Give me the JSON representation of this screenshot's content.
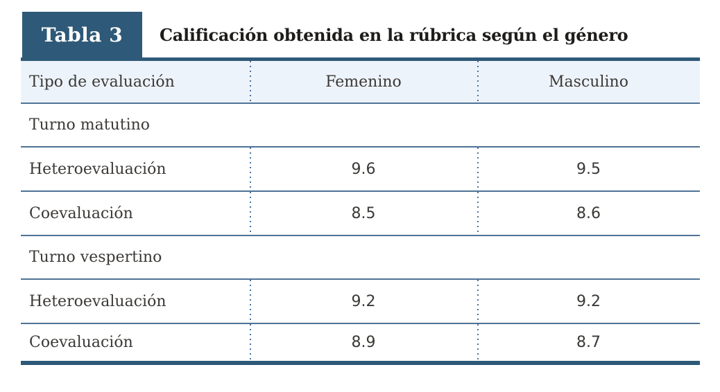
{
  "badge": {
    "label": "Tabla 3"
  },
  "title": "Calificación obtenida en la rúbrica según el género",
  "table": {
    "header": [
      "Tipo de evaluación",
      "Femenino",
      "Masculino"
    ],
    "sections": [
      {
        "title": "Turno matutino",
        "rows": [
          {
            "label": "Heteroevaluación",
            "values": [
              "9.6",
              "9.5"
            ]
          },
          {
            "label": "Coevaluación",
            "values": [
              "8.5",
              "8.6"
            ]
          }
        ]
      },
      {
        "title": "Turno vespertino",
        "rows": [
          {
            "label": "Heteroevaluación",
            "values": [
              "9.2",
              "9.2"
            ]
          },
          {
            "label": "Coevaluación",
            "values": [
              "8.9",
              "8.7"
            ]
          }
        ]
      }
    ]
  },
  "colors": {
    "accent_dark_blue": "#2e5978",
    "header_row_bg": "#edf3fa",
    "rule_blue": "#4e7296",
    "dotted_separator_blue": "#4a72a0",
    "body_text": "#3b3936",
    "title_text": "#1e1d1b",
    "badge_text": "#ffffff"
  },
  "chart_data": {
    "type": "table",
    "title": "Calificación obtenida en la rúbrica según el género",
    "columns": [
      "Tipo de evaluación",
      "Femenino",
      "Masculino"
    ],
    "rows": [
      [
        "Turno matutino",
        null,
        null
      ],
      [
        "Heteroevaluación",
        9.6,
        9.5
      ],
      [
        "Coevaluación",
        8.5,
        8.6
      ],
      [
        "Turno vespertino",
        null,
        null
      ],
      [
        "Heteroevaluación",
        9.2,
        9.2
      ],
      [
        "Coevaluación",
        8.9,
        8.7
      ]
    ]
  }
}
